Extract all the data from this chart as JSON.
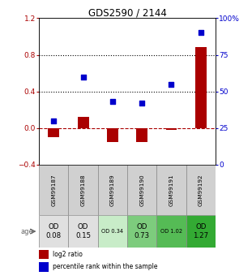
{
  "title": "GDS2590 / 2144",
  "samples": [
    "GSM99187",
    "GSM99188",
    "GSM99189",
    "GSM99190",
    "GSM99191",
    "GSM99192"
  ],
  "log2_ratio": [
    -0.1,
    0.12,
    -0.15,
    -0.15,
    -0.02,
    0.88
  ],
  "percentile_rank": [
    0.3,
    0.6,
    0.43,
    0.42,
    0.55,
    0.9
  ],
  "od_values": [
    "OD\n0.08",
    "OD\n0.15",
    "OD 0.34",
    "OD\n0.73",
    "OD 1.02",
    "OD\n1.27"
  ],
  "od_colors": [
    "#e0e0e0",
    "#e0e0e0",
    "#c8ecc8",
    "#7dcc7d",
    "#55bb55",
    "#33aa33"
  ],
  "od_fontsize_small": [
    false,
    false,
    true,
    false,
    true,
    false
  ],
  "age_label": "age",
  "legend_log2": "log2 ratio",
  "legend_pct": "percentile rank within the sample",
  "bar_color": "#aa0000",
  "dot_color": "#0000cc",
  "ylim_left": [
    -0.4,
    1.2
  ],
  "ylim_right": [
    0,
    100
  ],
  "yticks_left": [
    -0.4,
    0.0,
    0.4,
    0.8,
    1.2
  ],
  "yticks_right": [
    0,
    25,
    50,
    75,
    100
  ],
  "hlines": [
    0.4,
    0.8
  ],
  "background_color": "#ffffff"
}
